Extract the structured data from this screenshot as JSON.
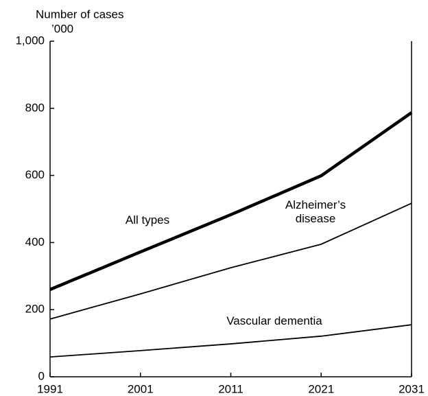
{
  "chart_data": {
    "type": "line",
    "y_label": "Number of cases",
    "y_unit": "’000",
    "x": [
      1991,
      2001,
      2011,
      2021,
      2031
    ],
    "xlim": [
      1991,
      2031
    ],
    "xticks": [
      1991,
      2001,
      2011,
      2021,
      2031
    ],
    "ylim": [
      0,
      1000
    ],
    "yticks": [
      0,
      200,
      400,
      600,
      800,
      {
        "value": 1000,
        "label": "1,000"
      }
    ],
    "series": [
      {
        "name": "All types",
        "color": "#000000",
        "values": [
          260,
          372,
          483,
          599,
          787
        ]
      },
      {
        "name": "Alzheimer’s disease",
        "color": "#000000",
        "values": [
          172,
          247,
          325,
          395,
          517
        ]
      },
      {
        "name": "Vascular dementia",
        "color": "#000000",
        "values": [
          59,
          78,
          98,
          121,
          155
        ]
      }
    ]
  }
}
